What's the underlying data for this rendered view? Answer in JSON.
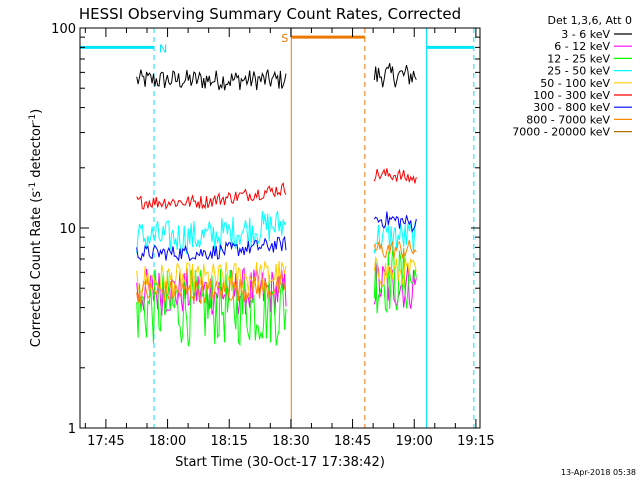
{
  "chart_data": {
    "type": "line",
    "title": "HESSI Observing Summary Count Rates, Corrected",
    "xlabel": "Start Time (30-Oct-17 17:38:42)",
    "ylabel_main": "Corrected Count Rate (s",
    "ylabel_sup1": "-1",
    "ylabel_mid": " detector",
    "ylabel_sup2": "-1",
    "ylabel_end": ")",
    "y_scale": "log",
    "ylim": [
      1,
      100
    ],
    "xlim_minutes_of_day": [
      1058.7,
      1156
    ],
    "y_ticks": [
      {
        "value": 1,
        "label": "1"
      },
      {
        "value": 10,
        "label": "10"
      },
      {
        "value": 100,
        "label": "100"
      }
    ],
    "x_ticks": [
      {
        "value": 1065,
        "label": "17:45"
      },
      {
        "value": 1080,
        "label": "18:00"
      },
      {
        "value": 1095,
        "label": "18:15"
      },
      {
        "value": 1110,
        "label": "18:30"
      },
      {
        "value": 1125,
        "label": "18:45"
      },
      {
        "value": 1140,
        "label": "19:00"
      },
      {
        "value": 1155,
        "label": "19:15"
      }
    ],
    "legend_title": "Det 1,3,6, Att 0",
    "legend_position": "top-right",
    "series": [
      {
        "name": "3 - 6 keV",
        "color": "#000000",
        "segments": [
          {
            "x0": 1072.5,
            "x1": 1108.8,
            "level": 55,
            "noise": 0.12,
            "trend": 0
          },
          {
            "x0": 1130.3,
            "x1": 1140.5,
            "level": 58,
            "noise": 0.14,
            "trend": 0
          }
        ]
      },
      {
        "name": "6 - 12 keV",
        "color": "#ff00ff",
        "segments": [
          {
            "x0": 1072.5,
            "x1": 1108.8,
            "level": 4.8,
            "noise": 0.28,
            "trend": 0
          },
          {
            "x0": 1130.3,
            "x1": 1140.5,
            "level": 5.2,
            "noise": 0.3,
            "trend": 0
          }
        ]
      },
      {
        "name": "12 - 25 keV",
        "color": "#00ff00",
        "segments": [
          {
            "x0": 1072.5,
            "x1": 1108.8,
            "level": 4.0,
            "noise": 0.45,
            "trend": 0
          },
          {
            "x0": 1130.3,
            "x1": 1140.5,
            "level": 5.5,
            "noise": 0.4,
            "trend": 0
          }
        ]
      },
      {
        "name": "25 - 50 keV",
        "color": "#00ffff",
        "segments": [
          {
            "x0": 1072.5,
            "x1": 1108.8,
            "level": 9.0,
            "noise": 0.2,
            "trend": 0.3
          },
          {
            "x0": 1130.3,
            "x1": 1140.5,
            "level": 9.0,
            "noise": 0.2,
            "trend": 0
          }
        ]
      },
      {
        "name": "50 - 100 keV",
        "color": "#ffcc00",
        "segments": [
          {
            "x0": 1072.5,
            "x1": 1108.8,
            "level": 5.5,
            "noise": 0.2,
            "trend": 0.1
          },
          {
            "x0": 1130.3,
            "x1": 1140.5,
            "level": 6.0,
            "noise": 0.18,
            "trend": 0
          }
        ]
      },
      {
        "name": "100 - 300 keV",
        "color": "#ff0000",
        "segments": [
          {
            "x0": 1072.5,
            "x1": 1108.8,
            "level": 13.5,
            "noise": 0.08,
            "trend": 0.3
          },
          {
            "x0": 1130.3,
            "x1": 1140.5,
            "level": 18.5,
            "noise": 0.08,
            "trend": -0.1
          }
        ]
      },
      {
        "name": "300 - 800 keV",
        "color": "#0000ff",
        "segments": [
          {
            "x0": 1072.5,
            "x1": 1108.8,
            "level": 7.5,
            "noise": 0.09,
            "trend": 0.2
          },
          {
            "x0": 1130.3,
            "x1": 1140.5,
            "level": 11.0,
            "noise": 0.1,
            "trend": -0.1
          }
        ]
      },
      {
        "name": "800 - 7000 keV",
        "color": "#ff8800",
        "segments": [
          {
            "x0": 1072.5,
            "x1": 1108.8,
            "level": 4.8,
            "noise": 0.14,
            "trend": 0.1
          },
          {
            "x0": 1130.3,
            "x1": 1140.5,
            "level": 7.8,
            "noise": 0.12,
            "trend": 0
          }
        ]
      },
      {
        "name": "7000 - 20000 keV",
        "color": "#aa7700",
        "segments": []
      }
    ],
    "annotations": {
      "night": {
        "label": "N",
        "color": "#00e5ff",
        "intervals": [
          [
            1058.7,
            1076.7
          ],
          [
            1143.0,
            1154.5
          ]
        ],
        "solid_lines": [
          1058.7,
          1143.0
        ],
        "dashed_lines": [
          1076.7,
          1154.5
        ],
        "level": 80
      },
      "saa": {
        "label": "S",
        "color": "#ee7700",
        "intervals": [
          [
            1110.1,
            1128.0
          ]
        ],
        "solid_lines": [
          1110.1
        ],
        "dashed_lines": [
          1128.0
        ],
        "level": 90
      }
    },
    "footer_date": "13-Apr-2018 05:38"
  }
}
